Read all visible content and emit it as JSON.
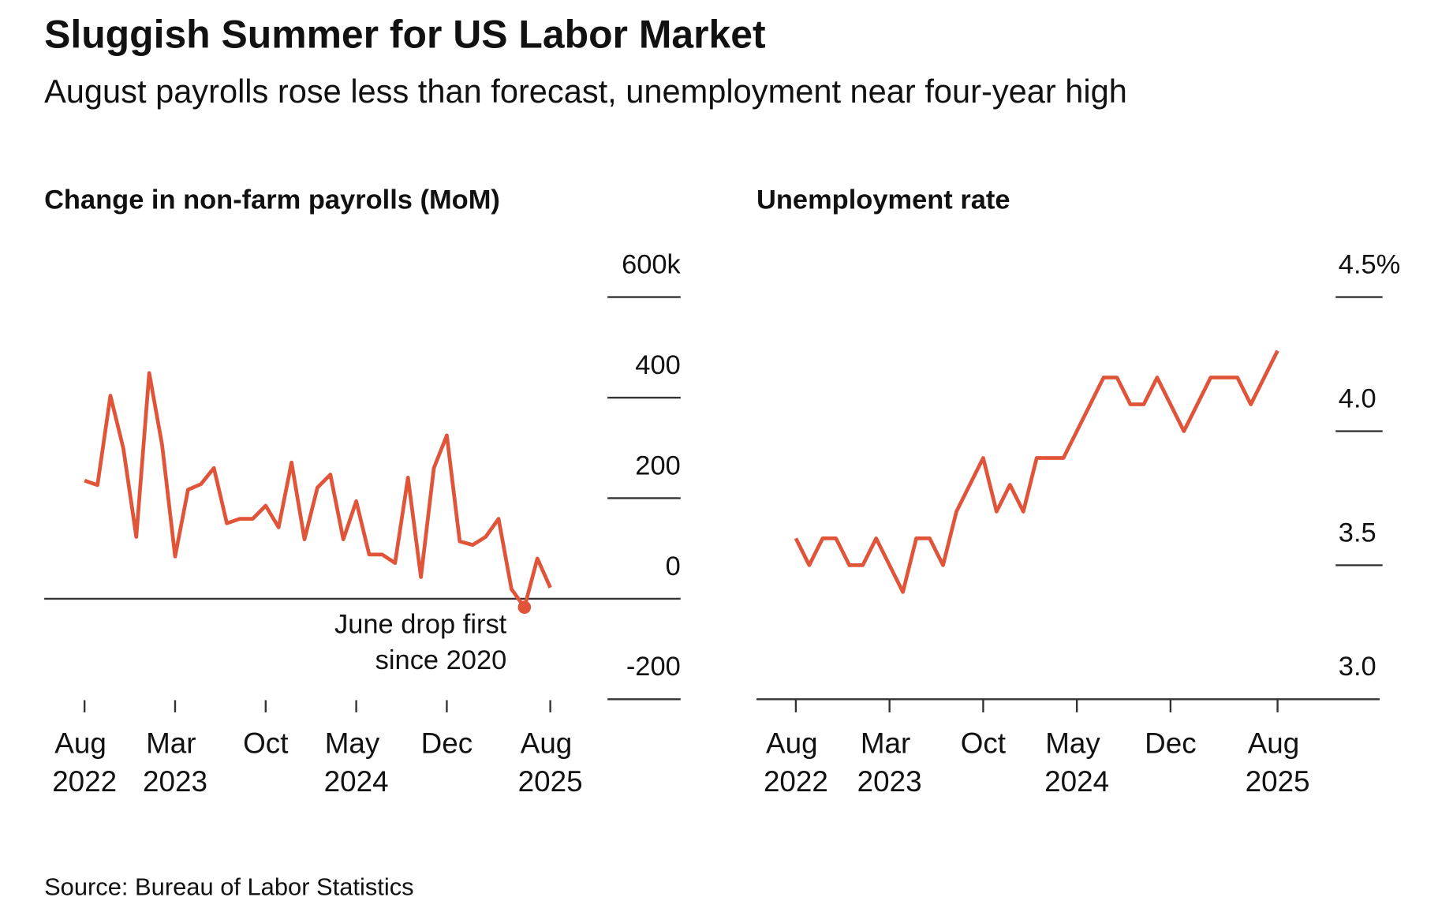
{
  "title": "Sluggish Summer for US Labor Market",
  "subtitle": "August payrolls rose less than forecast, unemployment near four-year high",
  "source": "Source: Bureau of Labor Statistics",
  "chart_data": [
    {
      "type": "line",
      "title": "Change in non-farm payrolls (MoM)",
      "categories": [
        "Aug 2022",
        null,
        null,
        null,
        null,
        null,
        null,
        "Mar 2023",
        null,
        null,
        null,
        null,
        null,
        null,
        "Oct",
        null,
        null,
        null,
        null,
        null,
        null,
        "May 2024",
        null,
        null,
        null,
        null,
        null,
        null,
        "Dec",
        null,
        null,
        null,
        null,
        null,
        null,
        null,
        "Aug 2025"
      ],
      "series": [
        {
          "name": "Change in non-farm payrolls",
          "color": "#e0553a",
          "values": [
            235,
            226,
            404,
            299,
            123,
            449,
            305,
            84,
            217,
            228,
            260,
            150,
            159,
            159,
            185,
            142,
            271,
            118,
            221,
            247,
            118,
            194,
            88,
            88,
            71,
            241,
            43,
            260,
            325,
            114,
            107,
            123,
            159,
            19,
            -17,
            80,
            22
          ]
        }
      ],
      "ylim": [
        -200,
        600
      ],
      "yticks": [
        -200,
        0,
        200,
        400,
        {
          "value": 600,
          "label": "600k"
        }
      ],
      "annotation": [
        "June drop first",
        "since 2020"
      ]
    },
    {
      "type": "line",
      "title": "Unemployment rate",
      "categories": [
        "Aug 2022",
        null,
        null,
        null,
        null,
        null,
        null,
        "Mar 2023",
        null,
        null,
        null,
        null,
        null,
        null,
        "Oct",
        null,
        null,
        null,
        null,
        null,
        null,
        "May 2024",
        null,
        null,
        null,
        null,
        null,
        null,
        "Dec",
        null,
        null,
        null,
        null,
        null,
        null,
        null,
        "Aug 2025"
      ],
      "series": [
        {
          "name": "Unemployment rate",
          "color": "#e0553a",
          "values": [
            3.6,
            3.5,
            3.6,
            3.6,
            3.5,
            3.5,
            3.6,
            3.5,
            3.4,
            3.6,
            3.6,
            3.5,
            3.7,
            3.8,
            3.9,
            3.7,
            3.8,
            3.7,
            3.9,
            3.9,
            3.9,
            4.0,
            4.1,
            4.2,
            4.2,
            4.1,
            4.1,
            4.2,
            4.1,
            4.0,
            4.1,
            4.2,
            4.2,
            4.2,
            4.1,
            4.2,
            4.3
          ]
        }
      ],
      "ylim": [
        3.0,
        4.5
      ],
      "yticks": [
        {
          "value": 3.0,
          "label": "3.0"
        },
        3.5,
        {
          "value": 4.0,
          "label": "4.0"
        },
        {
          "value": 4.5,
          "label": "4.5%"
        }
      ]
    }
  ]
}
